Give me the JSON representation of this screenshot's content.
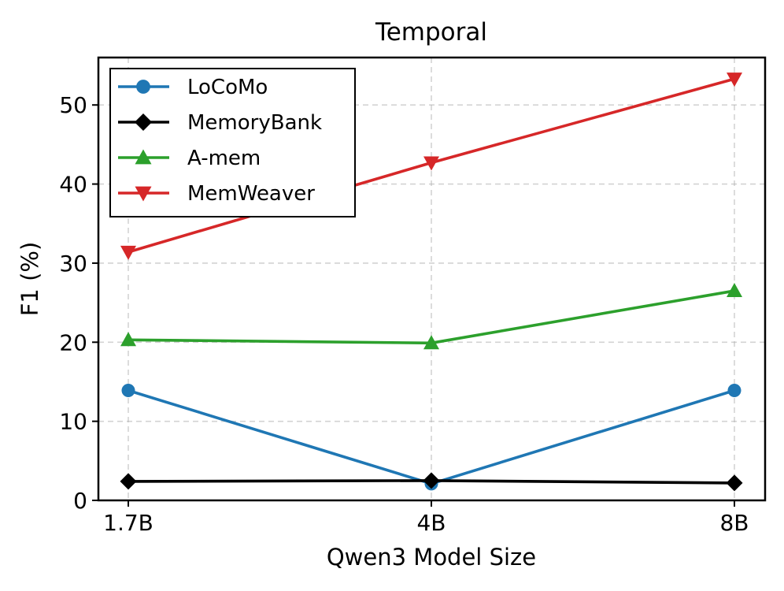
{
  "chart_data": {
    "type": "line",
    "title": "Temporal",
    "xlabel": "Qwen3 Model Size",
    "ylabel": "F1 (%)",
    "categories": [
      "1.7B",
      "4B",
      "8B"
    ],
    "ylim": [
      0,
      56
    ],
    "yticks": [
      0,
      10,
      20,
      30,
      40,
      50
    ],
    "grid": true,
    "legend_position": "top-left",
    "series": [
      {
        "name": "LoCoMo",
        "values": [
          13.9,
          2.1,
          13.9
        ],
        "color": "#1f77b4",
        "marker": "circle"
      },
      {
        "name": "MemoryBank",
        "values": [
          2.4,
          2.5,
          2.2
        ],
        "color": "#000000",
        "marker": "diamond"
      },
      {
        "name": "A-mem",
        "values": [
          20.3,
          19.9,
          26.5
        ],
        "color": "#2ca02c",
        "marker": "triangle-up"
      },
      {
        "name": "MemWeaver",
        "values": [
          31.4,
          42.7,
          53.3
        ],
        "color": "#d62728",
        "marker": "triangle-down"
      }
    ]
  }
}
